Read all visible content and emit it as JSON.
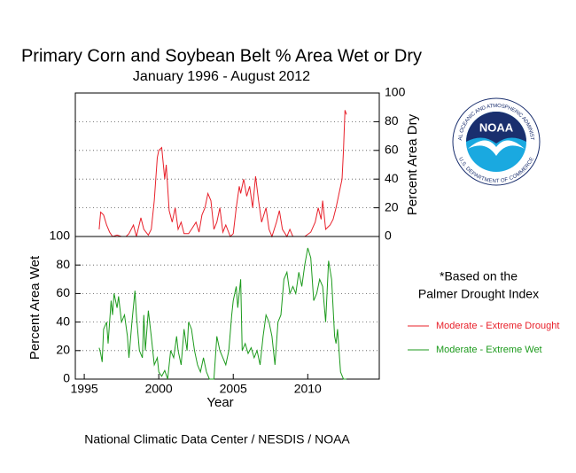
{
  "chart_data": [
    {
      "type": "line",
      "title": "Primary Corn and Soybean Belt % Area Wet or Dry",
      "subtitle": "January 1996 - August 2012",
      "ylabel": "Percent Area Dry",
      "yaxis_side": "right",
      "grid": true,
      "xlim": [
        1994.4,
        2014.8
      ],
      "ylim": [
        0,
        100
      ],
      "yticks": [
        0,
        20,
        40,
        60,
        80,
        100
      ],
      "x": [
        1996.0,
        1996.1,
        1996.3,
        1996.5,
        1996.7,
        1996.9,
        1997.2,
        1997.5,
        1997.8,
        1998.0,
        1998.3,
        1998.5,
        1998.8,
        1999.0,
        1999.3,
        1999.5,
        1999.7,
        1999.9,
        2000.0,
        2000.2,
        2000.4,
        2000.5,
        2000.7,
        2000.9,
        2001.0,
        2001.1,
        2001.3,
        2001.5,
        2001.7,
        2002.0,
        2002.2,
        2002.5,
        2002.7,
        2002.9,
        2003.1,
        2003.3,
        2003.5,
        2003.7,
        2003.9,
        2004.1,
        2004.3,
        2004.5,
        2004.8,
        2005.0,
        2005.2,
        2005.4,
        2005.5,
        2005.7,
        2005.9,
        2006.1,
        2006.3,
        2006.5,
        2006.7,
        2006.9,
        2007.2,
        2007.4,
        2007.6,
        2007.9,
        2008.1,
        2008.3,
        2008.6,
        2008.8,
        2009.0,
        2009.5,
        2009.8,
        2010.2,
        2010.5,
        2010.7,
        2010.9,
        2011.0,
        2011.2,
        2011.5,
        2011.7,
        2011.9,
        2012.1,
        2012.3,
        2012.4,
        2012.5,
        2012.6
      ],
      "series": [
        {
          "name": "Moderate - Extreme Drought",
          "color": "#e8202a",
          "values": [
            5,
            17,
            15,
            8,
            3,
            0,
            1,
            0,
            0,
            2,
            8,
            0,
            13,
            5,
            1,
            5,
            25,
            55,
            60,
            62,
            40,
            50,
            18,
            10,
            15,
            20,
            5,
            10,
            2,
            2,
            5,
            10,
            3,
            15,
            20,
            30,
            25,
            5,
            10,
            20,
            3,
            8,
            0,
            2,
            20,
            35,
            30,
            40,
            28,
            35,
            20,
            42,
            25,
            10,
            20,
            5,
            0,
            10,
            18,
            5,
            0,
            5,
            0,
            0,
            0,
            3,
            10,
            20,
            12,
            25,
            5,
            8,
            12,
            20,
            30,
            40,
            60,
            88,
            85
          ]
        }
      ]
    },
    {
      "type": "line",
      "xlabel": "Year",
      "ylabel": "Percent Area Wet",
      "yaxis_side": "left",
      "grid": true,
      "xlim": [
        1994.4,
        2014.8
      ],
      "xticks": [
        1995,
        2000,
        2005,
        2010
      ],
      "ylim": [
        0,
        100
      ],
      "yticks": [
        0,
        20,
        40,
        60,
        80,
        100
      ],
      "x": [
        1996.0,
        1996.1,
        1996.2,
        1996.3,
        1996.5,
        1996.6,
        1996.8,
        1996.9,
        1997.0,
        1997.2,
        1997.3,
        1997.5,
        1997.7,
        1997.9,
        1998.0,
        1998.2,
        1998.4,
        1998.5,
        1998.7,
        1998.9,
        1999.0,
        1999.1,
        1999.3,
        1999.5,
        1999.7,
        1999.9,
        2000.0,
        2000.2,
        2000.4,
        2000.6,
        2000.8,
        2001.0,
        2001.2,
        2001.3,
        2001.5,
        2001.7,
        2001.9,
        2002.0,
        2002.2,
        2002.4,
        2002.6,
        2002.8,
        2003.0,
        2003.2,
        2003.4,
        2003.7,
        2003.9,
        2004.1,
        2004.3,
        2004.5,
        2004.7,
        2004.9,
        2005.0,
        2005.2,
        2005.3,
        2005.5,
        2005.6,
        2005.8,
        2006.0,
        2006.2,
        2006.4,
        2006.6,
        2006.8,
        2007.0,
        2007.2,
        2007.4,
        2007.6,
        2007.8,
        2008.0,
        2008.2,
        2008.4,
        2008.6,
        2008.8,
        2009.0,
        2009.2,
        2009.4,
        2009.6,
        2009.8,
        2010.0,
        2010.2,
        2010.4,
        2010.6,
        2010.8,
        2011.0,
        2011.2,
        2011.4,
        2011.6,
        2011.8,
        2011.9,
        2012.0,
        2012.2,
        2012.4,
        2012.6
      ],
      "series": [
        {
          "name": "Moderate - Extreme Wet",
          "color": "#1c9a1c",
          "values": [
            22,
            18,
            12,
            35,
            40,
            25,
            55,
            45,
            60,
            50,
            58,
            40,
            45,
            30,
            15,
            40,
            62,
            45,
            20,
            15,
            45,
            20,
            48,
            30,
            10,
            15,
            5,
            2,
            6,
            0,
            20,
            15,
            30,
            20,
            10,
            35,
            20,
            40,
            35,
            20,
            10,
            5,
            15,
            5,
            0,
            0,
            30,
            20,
            15,
            10,
            20,
            45,
            55,
            65,
            50,
            70,
            20,
            25,
            18,
            22,
            15,
            20,
            10,
            30,
            45,
            40,
            30,
            10,
            40,
            45,
            70,
            75,
            60,
            65,
            60,
            75,
            65,
            80,
            92,
            85,
            55,
            60,
            70,
            65,
            40,
            83,
            70,
            30,
            25,
            35,
            5,
            0,
            0
          ]
        }
      ]
    }
  ],
  "annotations": [
    "*Based on the",
    "Palmer Drought Index"
  ],
  "source": "National Climatic Data Center / NESDIS / NOAA",
  "logo": {
    "name": "NOAA",
    "top_text": "NATIONAL OCEANIC AND ATMOSPHERIC ADMINISTRATION",
    "bottom_text": "U.S. DEPARTMENT OF COMMERCE"
  }
}
